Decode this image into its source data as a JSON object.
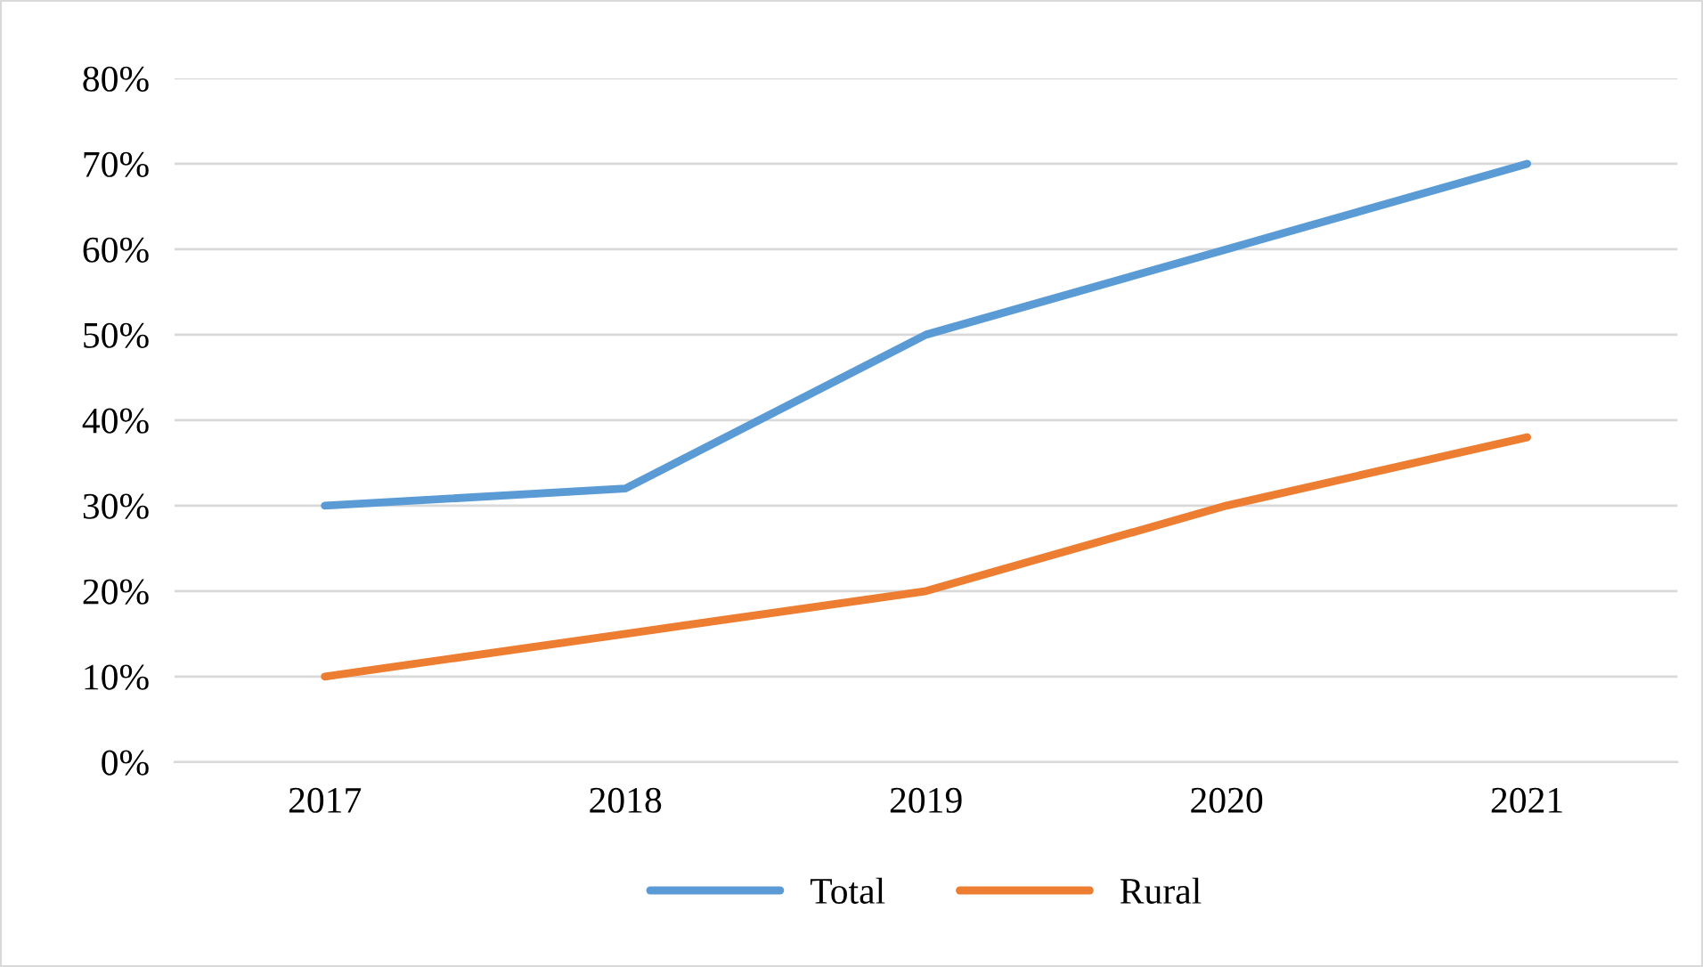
{
  "chart_data": {
    "type": "line",
    "categories": [
      "2017",
      "2018",
      "2019",
      "2020",
      "2021"
    ],
    "series": [
      {
        "name": "Total",
        "color": "#5b9bd5",
        "values": [
          30,
          32,
          50,
          60,
          70
        ]
      },
      {
        "name": "Rural",
        "color": "#ed7d31",
        "values": [
          10,
          15,
          20,
          30,
          38
        ]
      }
    ],
    "ylim": [
      0,
      80
    ],
    "yticks": [
      {
        "value": 0,
        "label": "0%"
      },
      {
        "value": 10,
        "label": "10%"
      },
      {
        "value": 20,
        "label": "20%"
      },
      {
        "value": 30,
        "label": "30%"
      },
      {
        "value": 40,
        "label": "40%"
      },
      {
        "value": 50,
        "label": "50%"
      },
      {
        "value": 60,
        "label": "60%"
      },
      {
        "value": 70,
        "label": "70%"
      },
      {
        "value": 80,
        "label": "80%"
      }
    ],
    "grid": "y",
    "legend": "bottom",
    "marker": "none",
    "line_style": "solid"
  }
}
